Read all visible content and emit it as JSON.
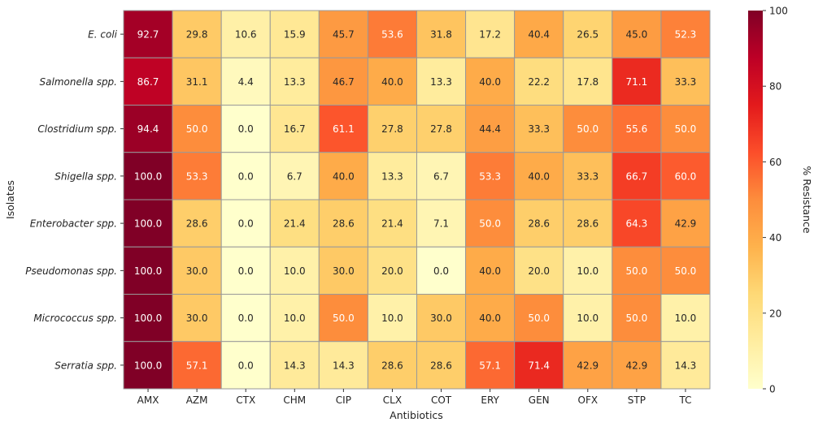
{
  "chart_data": {
    "type": "heatmap",
    "xlabel": "Antibiotics",
    "ylabel": "Isolates",
    "colorbar_label": "% Resistance",
    "colormap": "YlOrRd",
    "colormap_stops": [
      "#ffffcc",
      "#ffeda0",
      "#fed976",
      "#feb24c",
      "#fd8d3c",
      "#fc4e2a",
      "#e31a1c",
      "#bd0026",
      "#800026"
    ],
    "vmin": 0,
    "vmax": 100,
    "colorbar_ticks": [
      "0",
      "20",
      "40",
      "60",
      "80",
      "100"
    ],
    "columns": [
      "AMX",
      "AZM",
      "CTX",
      "CHM",
      "CIP",
      "CLX",
      "COT",
      "ERY",
      "GEN",
      "OFX",
      "STP",
      "TC"
    ],
    "rows": [
      "E. coli",
      "Salmonella spp.",
      "Clostridium spp.",
      "Shigella spp.",
      "Enterobacter spp.",
      "Pseudomonas spp.",
      "Micrococcus spp.",
      "Serratia spp."
    ],
    "values": [
      [
        92.7,
        29.8,
        10.6,
        15.9,
        45.7,
        53.6,
        31.8,
        17.2,
        40.4,
        26.5,
        45.0,
        52.3
      ],
      [
        86.7,
        31.1,
        4.4,
        13.3,
        46.7,
        40.0,
        13.3,
        40.0,
        22.2,
        17.8,
        71.1,
        33.3
      ],
      [
        94.4,
        50.0,
        0.0,
        16.7,
        61.1,
        27.8,
        27.8,
        44.4,
        33.3,
        50.0,
        55.6,
        50.0
      ],
      [
        100.0,
        53.3,
        0.0,
        6.7,
        40.0,
        13.3,
        6.7,
        53.3,
        40.0,
        33.3,
        66.7,
        60.0
      ],
      [
        100.0,
        28.6,
        0.0,
        21.4,
        28.6,
        21.4,
        7.1,
        50.0,
        28.6,
        28.6,
        64.3,
        42.9
      ],
      [
        100.0,
        30.0,
        0.0,
        10.0,
        30.0,
        20.0,
        0.0,
        40.0,
        20.0,
        10.0,
        50.0,
        50.0
      ],
      [
        100.0,
        30.0,
        0.0,
        10.0,
        50.0,
        10.0,
        30.0,
        40.0,
        50.0,
        10.0,
        50.0,
        10.0
      ],
      [
        100.0,
        57.1,
        0.0,
        14.3,
        14.3,
        28.6,
        28.6,
        57.1,
        71.4,
        42.9,
        42.9,
        14.3
      ]
    ],
    "annotations": true,
    "cell_border_color": "#999999"
  }
}
